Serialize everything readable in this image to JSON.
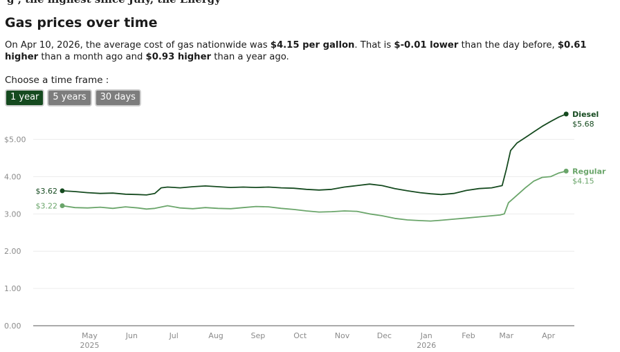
{
  "top_fragment": "g , the highest since July, the Energy",
  "heading": "Gas prices over time",
  "summary": {
    "p1": "On Apr 10, 2026, the average cost of gas nationwide was ",
    "price": "$4.15 per gallon",
    "p2": ". That is ",
    "day_change": "$-0.01 lower",
    "p3": " than the day before, ",
    "month_change": "$0.61 higher",
    "p4": " than a month ago and ",
    "year_change": "$0.93 higher",
    "p5": " than a year ago."
  },
  "timeframe": {
    "label": "Choose a time frame :",
    "options": [
      "1 year",
      "5 years",
      "30 days"
    ],
    "selected": "1 year"
  },
  "colors": {
    "diesel": "#154a1f",
    "regular": "#6aa56a",
    "grid": "#ececec",
    "axis": "#555555"
  },
  "chart_data": {
    "type": "line",
    "title": "Gas prices over time",
    "xlabel": "",
    "ylabel": "",
    "ylim": [
      0,
      5.4
    ],
    "yticks": [
      0,
      1,
      2,
      3,
      4,
      5
    ],
    "ytick_labels": [
      "0.00",
      "1.00",
      "2.00",
      "3.00",
      "4.00",
      "$5.00"
    ],
    "xlim": [
      0,
      12
    ],
    "xticks": [
      {
        "pos": 0.65,
        "label": "May",
        "sub": "2025"
      },
      {
        "pos": 1.65,
        "label": "Jun",
        "sub": ""
      },
      {
        "pos": 2.65,
        "label": "Jul",
        "sub": ""
      },
      {
        "pos": 3.65,
        "label": "Aug",
        "sub": ""
      },
      {
        "pos": 4.65,
        "label": "Sep",
        "sub": ""
      },
      {
        "pos": 5.65,
        "label": "Oct",
        "sub": ""
      },
      {
        "pos": 6.65,
        "label": "Nov",
        "sub": ""
      },
      {
        "pos": 7.65,
        "label": "Dec",
        "sub": ""
      },
      {
        "pos": 8.65,
        "label": "Jan",
        "sub": "2026"
      },
      {
        "pos": 9.65,
        "label": "Feb",
        "sub": ""
      },
      {
        "pos": 10.55,
        "label": "Mar",
        "sub": ""
      },
      {
        "pos": 11.55,
        "label": "Apr",
        "sub": ""
      }
    ],
    "series": [
      {
        "name": "Diesel",
        "start_label": "$3.62",
        "end_label": "$5.68",
        "x": [
          0,
          0.3,
          0.6,
          0.9,
          1.2,
          1.5,
          1.8,
          2.0,
          2.2,
          2.35,
          2.5,
          2.8,
          3.1,
          3.4,
          3.7,
          4.0,
          4.3,
          4.6,
          4.9,
          5.2,
          5.5,
          5.8,
          6.1,
          6.4,
          6.7,
          7.0,
          7.3,
          7.6,
          7.9,
          8.2,
          8.5,
          8.75,
          9.0,
          9.3,
          9.6,
          9.9,
          10.2,
          10.45,
          10.55,
          10.65,
          10.8,
          11.0,
          11.2,
          11.4,
          11.6,
          11.8,
          11.97
        ],
        "values": [
          3.62,
          3.6,
          3.57,
          3.55,
          3.56,
          3.53,
          3.52,
          3.51,
          3.55,
          3.7,
          3.72,
          3.7,
          3.73,
          3.75,
          3.73,
          3.71,
          3.72,
          3.71,
          3.72,
          3.7,
          3.69,
          3.66,
          3.64,
          3.66,
          3.72,
          3.76,
          3.8,
          3.76,
          3.68,
          3.62,
          3.57,
          3.54,
          3.52,
          3.55,
          3.63,
          3.68,
          3.7,
          3.76,
          4.2,
          4.7,
          4.9,
          5.05,
          5.2,
          5.35,
          5.48,
          5.6,
          5.68
        ]
      },
      {
        "name": "Regular",
        "start_label": "$3.22",
        "end_label": "$4.15",
        "x": [
          0,
          0.3,
          0.6,
          0.9,
          1.2,
          1.5,
          1.8,
          2.0,
          2.2,
          2.5,
          2.8,
          3.1,
          3.4,
          3.7,
          4.0,
          4.3,
          4.6,
          4.9,
          5.2,
          5.5,
          5.8,
          6.1,
          6.4,
          6.7,
          7.0,
          7.3,
          7.6,
          7.9,
          8.2,
          8.5,
          8.75,
          9.0,
          9.3,
          9.6,
          9.9,
          10.2,
          10.4,
          10.5,
          10.6,
          10.8,
          11.0,
          11.2,
          11.4,
          11.6,
          11.8,
          11.97
        ],
        "values": [
          3.22,
          3.17,
          3.16,
          3.18,
          3.15,
          3.19,
          3.16,
          3.13,
          3.15,
          3.22,
          3.16,
          3.14,
          3.17,
          3.15,
          3.14,
          3.17,
          3.2,
          3.19,
          3.15,
          3.12,
          3.08,
          3.05,
          3.06,
          3.08,
          3.07,
          3.0,
          2.95,
          2.88,
          2.84,
          2.82,
          2.81,
          2.83,
          2.86,
          2.89,
          2.92,
          2.95,
          2.97,
          3.0,
          3.3,
          3.5,
          3.7,
          3.88,
          3.98,
          4.0,
          4.1,
          4.15
        ]
      }
    ]
  }
}
